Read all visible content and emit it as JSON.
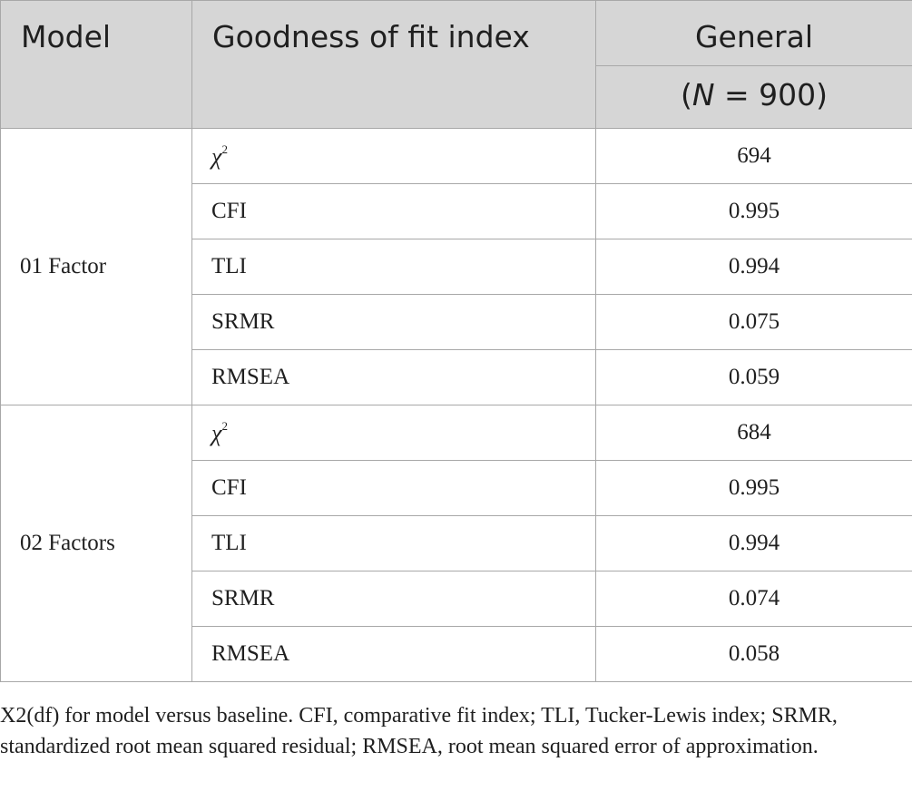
{
  "header": {
    "model": "Model",
    "index": "Goodness of fit index",
    "general": "General",
    "sample_open": "(",
    "sample_n": "N",
    "sample_rest": " = 900)"
  },
  "groups": [
    {
      "model": "01 Factor",
      "rows": [
        {
          "index_base": "χ",
          "index_sup": "2",
          "value": "694"
        },
        {
          "index": "CFI",
          "value": "0.995"
        },
        {
          "index": "TLI",
          "value": "0.994"
        },
        {
          "index": "SRMR",
          "value": "0.075"
        },
        {
          "index": "RMSEA",
          "value": "0.059"
        }
      ]
    },
    {
      "model": "02 Factors",
      "rows": [
        {
          "index_base": "χ",
          "index_sup": "2",
          "value": "684"
        },
        {
          "index": "CFI",
          "value": "0.995"
        },
        {
          "index": "TLI",
          "value": "0.994"
        },
        {
          "index": "SRMR",
          "value": "0.074"
        },
        {
          "index": "RMSEA",
          "value": "0.058"
        }
      ]
    }
  ],
  "footnote": "X2(df) for model versus baseline. CFI, comparative fit index; TLI, Tucker-Lewis index; SRMR, standardized root mean squared residual; RMSEA, root mean squared error of approximation."
}
